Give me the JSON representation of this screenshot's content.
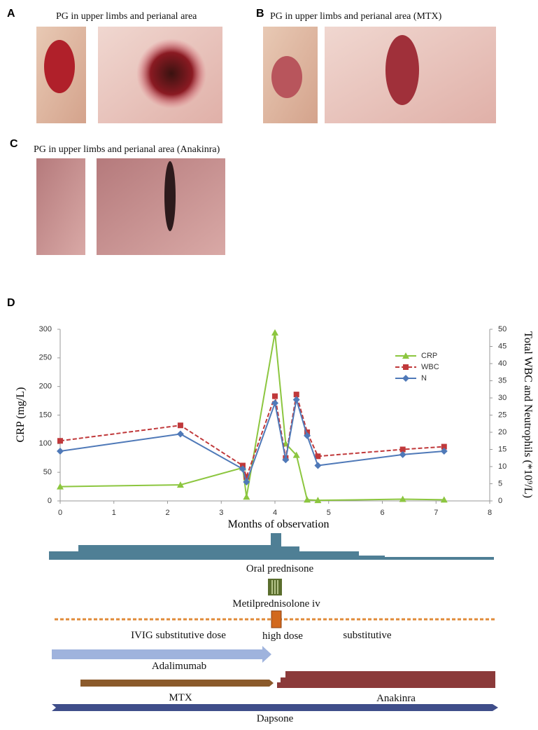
{
  "panels": [
    {
      "label": "A",
      "caption": "PG in upper limbs and perianal area"
    },
    {
      "label": "B",
      "caption": "PG in upper limbs and perianal area (MTX)"
    },
    {
      "label": "C",
      "caption": "PG in upper limbs and perianal area (Anakinra)"
    },
    {
      "label": "D"
    }
  ],
  "chart_data": {
    "type": "line",
    "xlabel": "Months of observation",
    "ylabel": "CRP (mg/L)",
    "y2label": "Total WBC and Neutrophils (*10⁹/L)",
    "x": [
      0,
      2.24,
      3.4,
      3.47,
      4.0,
      4.2,
      4.4,
      4.6,
      4.8,
      6.38,
      7.15
    ],
    "series": [
      {
        "name": "CRP",
        "color": "#8cc63f",
        "marker": "triangle",
        "values": [
          25,
          28,
          58,
          7,
          294,
          100,
          80,
          2,
          1,
          3,
          2
        ]
      },
      {
        "name": "WBC",
        "color": "#c0393b",
        "marker": "square",
        "dashed": true,
        "axis": "y2",
        "values": [
          17.5,
          22,
          10.3,
          7,
          30.5,
          12.5,
          31,
          20,
          13,
          15,
          15.8
        ]
      },
      {
        "name": "N",
        "color": "#4f79b8",
        "marker": "diamond",
        "axis": "y2",
        "values": [
          14.5,
          19.5,
          9.3,
          5.5,
          28.5,
          12,
          29.5,
          19,
          10.3,
          13.5,
          14.5
        ]
      }
    ],
    "xlim": [
      0,
      8
    ],
    "xticks": [
      0,
      1,
      2,
      3,
      4,
      5,
      6,
      7,
      8
    ],
    "ylim": [
      0,
      300
    ],
    "yticks": [
      0,
      50,
      100,
      150,
      200,
      250,
      300
    ],
    "y2lim": [
      0,
      50
    ],
    "y2ticks": [
      0,
      5,
      10,
      15,
      20,
      25,
      30,
      35,
      40,
      45,
      50
    ]
  },
  "timeline": {
    "oral_prednisone": "Oral prednisone",
    "metilprednisolone": "Metilprednisolone iv",
    "ivig_substitutive_dose": "IVIG substitutive dose",
    "high_dose": "high dose",
    "substitutive": "substitutive",
    "adalimumab": "Adalimumab",
    "mtx": "MTX",
    "anakinra": "Anakinra",
    "dapsone": "Dapsone"
  }
}
